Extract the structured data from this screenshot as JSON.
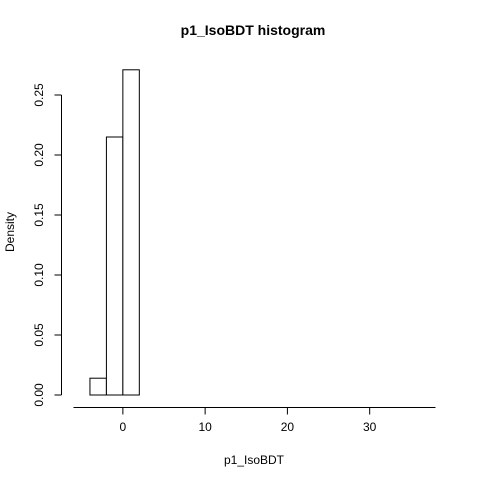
{
  "chart_data": {
    "type": "bar",
    "title": "p1_IsoBDT  histogram",
    "xlabel": "p1_IsoBDT",
    "ylabel": "Density",
    "bins": [
      {
        "x0": -4,
        "x1": -2,
        "density": 0.014
      },
      {
        "x0": -2,
        "x1": 0,
        "density": 0.215
      },
      {
        "x0": 0,
        "x1": 2,
        "density": 0.271
      }
    ],
    "xlim": [
      -6,
      38
    ],
    "ylim": [
      0,
      0.28
    ],
    "x_ticks": [
      0,
      10,
      20,
      30
    ],
    "x_tick_labels": [
      "0",
      "10",
      "20",
      "30"
    ],
    "x_axis_line": [
      -6,
      38
    ],
    "y_ticks": [
      0,
      0.05,
      0.1,
      0.15,
      0.2,
      0.25
    ],
    "y_tick_labels": [
      "0.00",
      "0.05",
      "0.10",
      "0.15",
      "0.20",
      "0.25"
    ],
    "grid": false,
    "bar_fill": "#ffffff",
    "bar_stroke": "#000000"
  }
}
